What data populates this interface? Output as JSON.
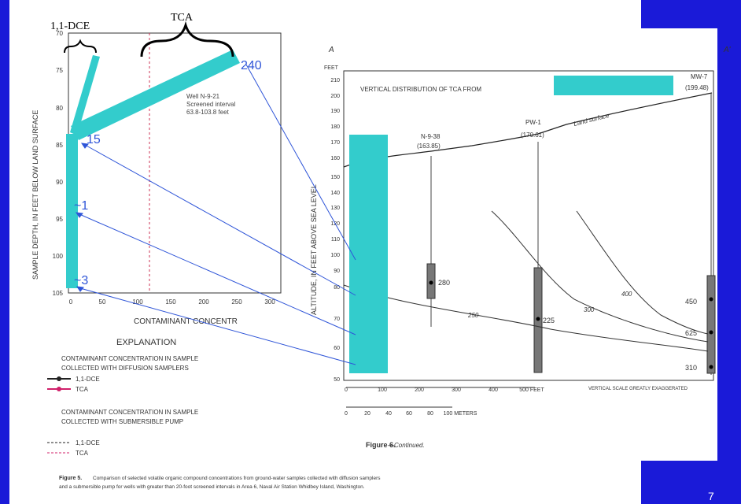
{
  "slide": {
    "number": "7",
    "accent_color": "#1a1ad8",
    "highlight_color": "#33cccc"
  },
  "annotations": {
    "dce_label": "1,1-DCE",
    "tca_label": "TCA",
    "v240": "240",
    "v15": "15",
    "v1": "~1",
    "v3": "~3"
  },
  "left_plot": {
    "y_axis_label": "SAMPLE DEPTH, IN FEET BELOW LAND SURFACE",
    "y_ticks": [
      "70",
      "75",
      "80",
      "85",
      "90",
      "95",
      "100",
      "105"
    ],
    "x_ticks": [
      "0",
      "50",
      "100",
      "150",
      "200",
      "250",
      "300"
    ],
    "x_axis_label": "CONTAMINANT CONCENTR",
    "well_note_1": "Well N-9-21",
    "well_note_2": "Screened interval",
    "well_note_3": "63.8-103.8 feet"
  },
  "explanation": {
    "title": "EXPLANATION",
    "diff_1": "CONTAMINANT CONCENTRATION IN SAMPLE",
    "diff_2": "COLLECTED WITH DIFFUSION SAMPLERS",
    "leg_dce": "1,1-DCE",
    "leg_tca": "TCA",
    "pump_1": "CONTAMINANT CONCENTRATION IN SAMPLE",
    "pump_2": "COLLECTED WITH SUBMERSIBLE PUMP",
    "leg_dce2": "1,1-DCE",
    "leg_tca2": "TCA"
  },
  "right_plot": {
    "section_a": "A",
    "section_a2": "A'",
    "feet": "FEET",
    "title": "VERTICAL DISTRIBUTION OF TCA FROM",
    "y_axis_label": "ALTITUDE, IN FEET ABOVE SEA LEVEL",
    "y_ticks": [
      "210",
      "200",
      "190",
      "180",
      "170",
      "160",
      "150",
      "140",
      "130",
      "120",
      "110",
      "100",
      "90",
      "80",
      "70",
      "60",
      "50"
    ],
    "wells": [
      {
        "name": "N-9-38",
        "elev": "(163.85)"
      },
      {
        "name": "PW-1",
        "elev": "(170.61)"
      },
      {
        "name": "MW-7",
        "elev": "(199.48)"
      }
    ],
    "land_surface": "Land surface",
    "values": {
      "n938": "280",
      "pw1": "225",
      "mw7_a": "450",
      "mw7_b": "625",
      "mw7_c": "310"
    },
    "contours": {
      "c1": "250",
      "c2": "300",
      "c3": "400"
    },
    "scale_feet": [
      "0",
      "100",
      "200",
      "300",
      "400",
      "500 FEET"
    ],
    "scale_meters": [
      "0",
      "20",
      "40",
      "60",
      "80",
      "100 METERS"
    ],
    "vert_exag": "VERTICAL SCALE GREATLY EXAGGERATED",
    "fig_label": "Figure 6.",
    "fig_cont": "—Continued."
  },
  "caption": {
    "fig": "Figure 5.",
    "line1": "Comparison of selected volatile organic compound concentrations from ground-water samples collected with diffusion samplers",
    "line2": "and a submersible pump for wells with greater than 20-foot screened intervals in Area 6, Naval Air Station Whidbey Island, Washington."
  }
}
